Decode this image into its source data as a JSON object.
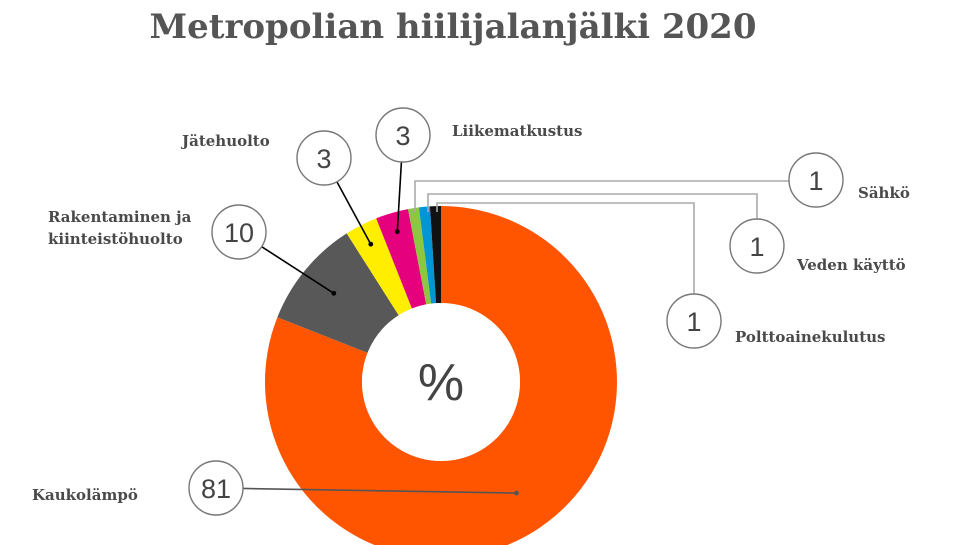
{
  "chart_data": {
    "type": "pie",
    "donut": true,
    "title": "Metropolian hiilijalanjälki 2020",
    "center_label": "%",
    "series": [
      {
        "name": "Kaukolämpö",
        "value": 81,
        "value_label": "81",
        "color": "#FF5500"
      },
      {
        "name": "Rakentaminen ja kiinteistöhuolto",
        "value": 10,
        "value_label": "10",
        "color": "#585858"
      },
      {
        "name": "Jätehuolto",
        "value": 3,
        "value_label": "3",
        "color": "#FFEE00"
      },
      {
        "name": "Liikematkustus",
        "value": 3,
        "value_label": "3",
        "color": "#E5007E"
      },
      {
        "name": "Sähkö",
        "value": 1,
        "value_label": "1",
        "color": "#8DC63F"
      },
      {
        "name": "Veden käyttö",
        "value": 1,
        "value_label": "1",
        "color": "#0096D6"
      },
      {
        "name": "Polttoainekulutus",
        "value": 1,
        "value_label": "1",
        "color": "#111111"
      }
    ]
  }
}
